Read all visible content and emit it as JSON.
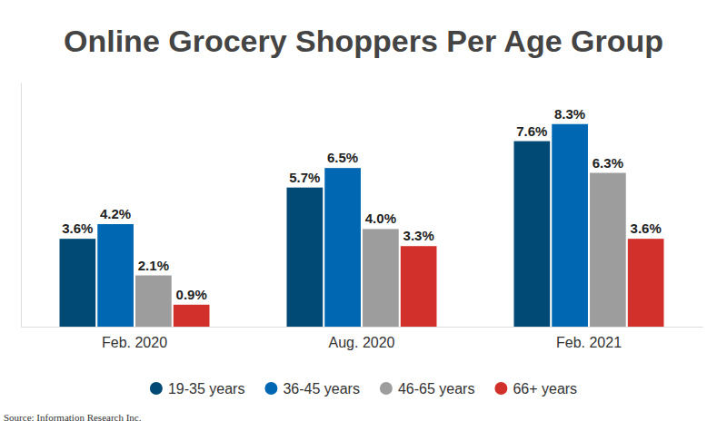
{
  "chart_data": {
    "type": "bar",
    "title": "Online Grocery Shoppers Per Age Group",
    "source": "Source: Information Research Inc.",
    "categories": [
      "Feb. 2020",
      "Aug. 2020",
      "Feb. 2021"
    ],
    "series": [
      {
        "name": "19-35 years",
        "color": "#004a75",
        "values": [
          3.6,
          5.7,
          7.6
        ],
        "value_labels": [
          "3.6%",
          "5.7%",
          "7.6%"
        ]
      },
      {
        "name": "36-45 years",
        "color": "#0068b3",
        "values": [
          4.2,
          6.5,
          8.3
        ],
        "value_labels": [
          "4.2%",
          "6.5%",
          "8.3%"
        ]
      },
      {
        "name": "46-65 years",
        "color": "#9d9d9d",
        "values": [
          2.1,
          4.0,
          6.3
        ],
        "value_labels": [
          "2.1%",
          "4.0%",
          "6.3%"
        ]
      },
      {
        "name": "66+ years",
        "color": "#d2312b",
        "values": [
          0.9,
          3.3,
          3.6
        ],
        "value_labels": [
          "0.9%",
          "3.3%",
          "3.6%"
        ]
      }
    ],
    "ylim": [
      0,
      10
    ],
    "data_labels": true,
    "tick_labels": "x",
    "legend": "bottom"
  }
}
